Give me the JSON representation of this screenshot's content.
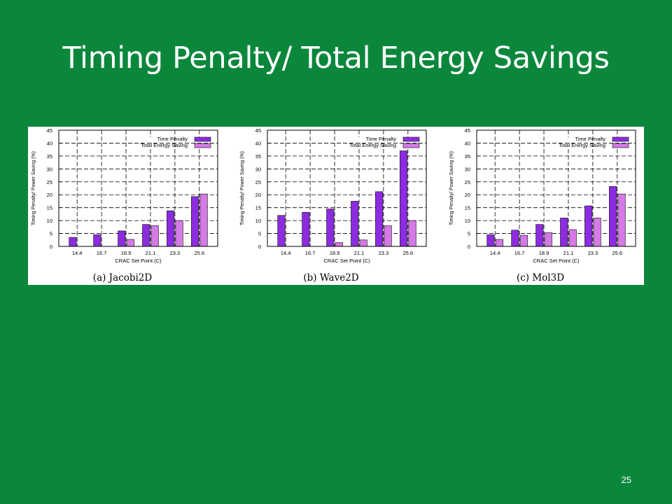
{
  "slide": {
    "title": "Timing Penalty/ Total Energy Savings",
    "page_number": "25"
  },
  "colors": {
    "background": "#0b873c",
    "time_penalty": "#8c2be0",
    "total_energy_saving": "#d57ae6"
  },
  "chart_data": [
    {
      "type": "bar",
      "caption": "(a) Jacobi2D",
      "xlabel": "CRAC Set Point (C)",
      "ylabel": "Timing Penalty/ Power Saving (%)",
      "ylim": [
        0,
        45
      ],
      "yticks": [
        0,
        5,
        10,
        15,
        20,
        25,
        30,
        35,
        40,
        45
      ],
      "grid": true,
      "legend_position": "top-right",
      "categories": [
        "14.4",
        "16.7",
        "18.9",
        "21.1",
        "23.3",
        "25.6"
      ],
      "series": [
        {
          "name": "Time Penalty",
          "values": [
            3.5,
            4.5,
            6,
            8.5,
            13.8,
            19.3
          ]
        },
        {
          "name": "Total Energy Saving",
          "values": [
            0,
            0,
            2.7,
            8,
            10,
            20.3
          ]
        }
      ]
    },
    {
      "type": "bar",
      "caption": "(b) Wave2D",
      "xlabel": "CRAC Set Point (C)",
      "ylabel": "Timing Penalty/ Power Saving (%)",
      "ylim": [
        0,
        45
      ],
      "yticks": [
        0,
        5,
        10,
        15,
        20,
        25,
        30,
        35,
        40,
        45
      ],
      "grid": true,
      "legend_position": "top-right",
      "categories": [
        "14.4",
        "16.7",
        "18.9",
        "21.1",
        "23.3",
        "25.6"
      ],
      "series": [
        {
          "name": "Time Penalty",
          "values": [
            12,
            13.2,
            14.5,
            17.5,
            21.2,
            37
          ]
        },
        {
          "name": "Total Energy Saving",
          "values": [
            0,
            0,
            1.5,
            2.5,
            8,
            10
          ]
        }
      ]
    },
    {
      "type": "bar",
      "caption": "(c) Mol3D",
      "xlabel": "CRAC Set Point (C)",
      "ylabel": "Timing Penalty/ Power Saving (%)",
      "ylim": [
        0,
        45
      ],
      "yticks": [
        0,
        5,
        10,
        15,
        20,
        25,
        30,
        35,
        40,
        45
      ],
      "grid": true,
      "legend_position": "top-right",
      "categories": [
        "14.4",
        "16.7",
        "18.9",
        "21.1",
        "23.3",
        "25.6"
      ],
      "series": [
        {
          "name": "Time Penalty",
          "values": [
            4.5,
            6.3,
            8.5,
            11,
            15.7,
            23.2
          ]
        },
        {
          "name": "Total Energy Saving",
          "values": [
            2.7,
            4.3,
            5.3,
            6.5,
            11,
            20.3
          ]
        }
      ]
    }
  ]
}
